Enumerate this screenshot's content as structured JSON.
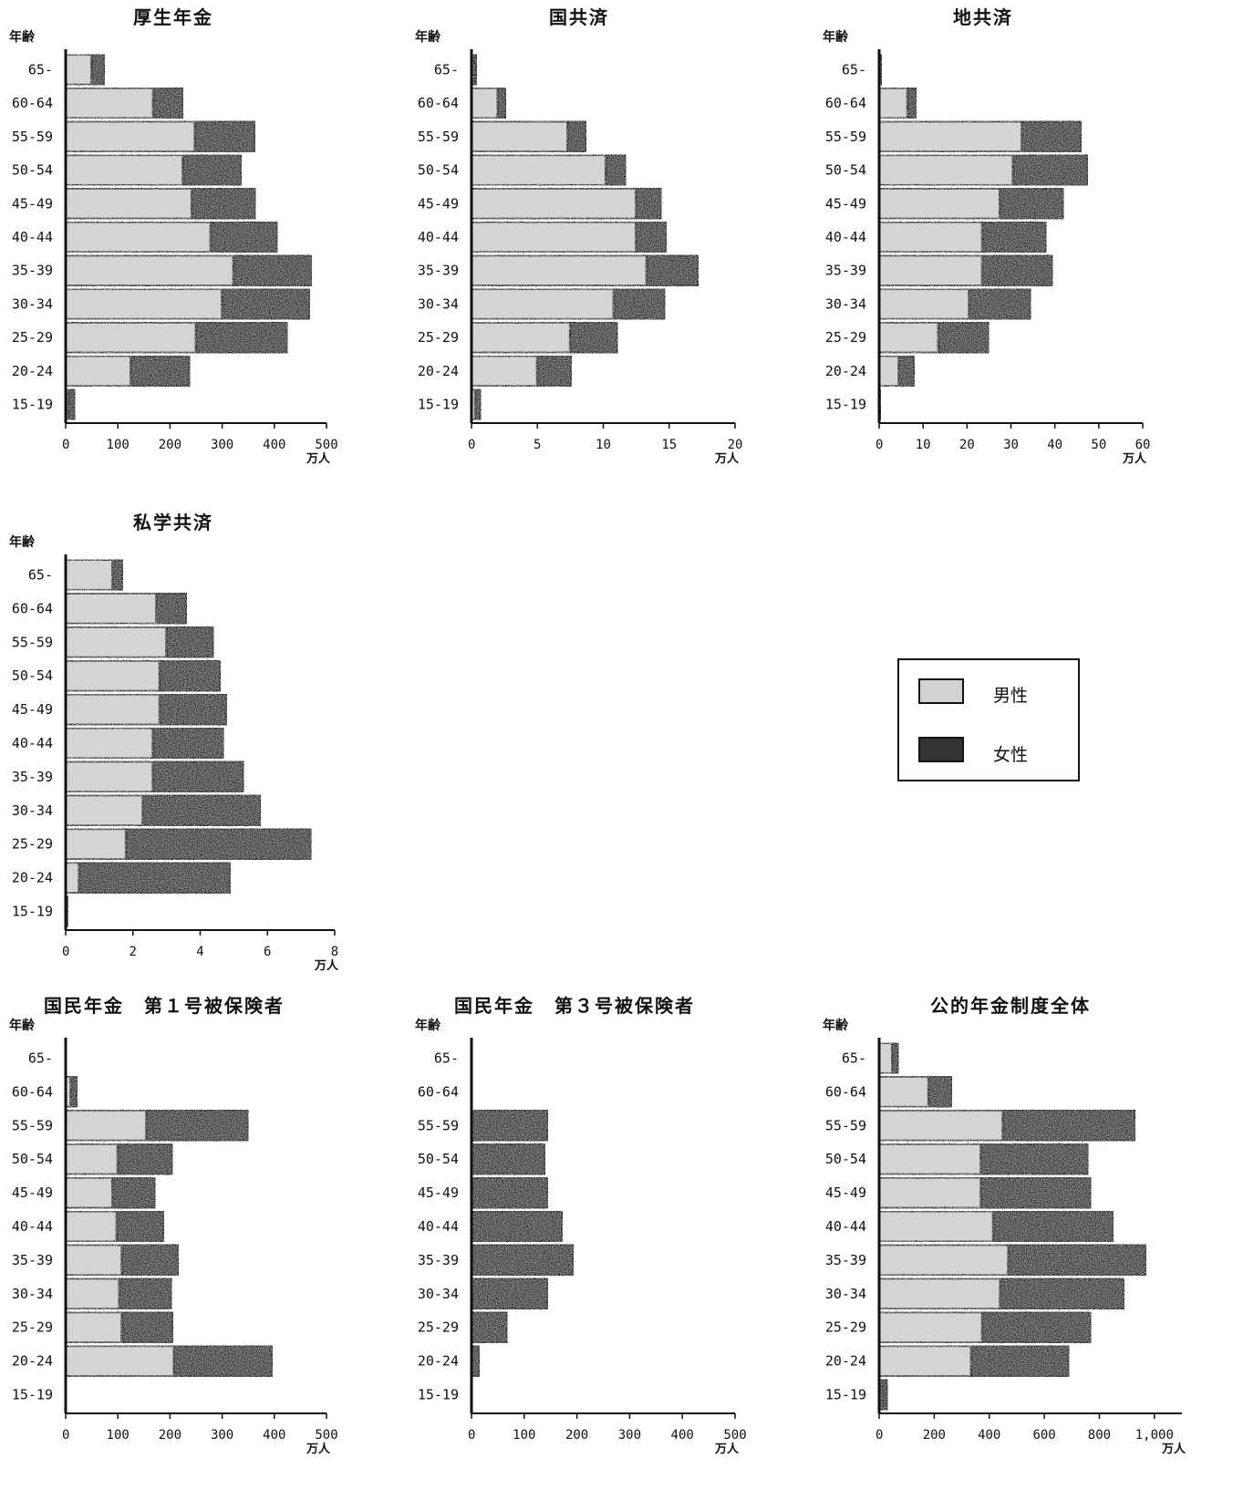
{
  "chart_data": [
    {
      "type": "bar",
      "orientation": "horizontal-stacked",
      "title": "厚生年金",
      "age_header": "年齢",
      "unit": "万人",
      "categories": [
        "65-",
        "60-64",
        "55-59",
        "50-54",
        "45-49",
        "40-44",
        "35-39",
        "30-34",
        "25-29",
        "20-24",
        "15-19"
      ],
      "xlim": [
        0,
        500
      ],
      "ticks": [
        0,
        100,
        200,
        300,
        400,
        500
      ],
      "tick_labels": [
        "0",
        "100",
        "200",
        "300",
        "400",
        "500"
      ],
      "series": [
        {
          "name": "男性",
          "values": [
            50,
            168,
            248,
            225,
            242,
            278,
            322,
            300,
            250,
            125,
            5
          ]
        },
        {
          "name": "女性",
          "values": [
            25,
            57,
            115,
            112,
            122,
            128,
            150,
            168,
            175,
            113,
            13
          ]
        }
      ]
    },
    {
      "type": "bar",
      "orientation": "horizontal-stacked",
      "title": "国共済",
      "age_header": "年齢",
      "unit": "万人",
      "categories": [
        "65-",
        "60-64",
        "55-59",
        "50-54",
        "45-49",
        "40-44",
        "35-39",
        "30-34",
        "25-29",
        "20-24",
        "15-19"
      ],
      "xlim": [
        0,
        20
      ],
      "ticks": [
        0,
        5,
        10,
        15,
        20
      ],
      "tick_labels": [
        "0",
        "5",
        "10",
        "15",
        "20"
      ],
      "series": [
        {
          "name": "男性",
          "values": [
            0.2,
            2.0,
            7.3,
            10.2,
            12.5,
            12.5,
            13.3,
            10.8,
            7.5,
            5.0,
            0.3
          ]
        },
        {
          "name": "女性",
          "values": [
            0.2,
            0.6,
            1.4,
            1.5,
            1.9,
            2.3,
            3.9,
            3.9,
            3.6,
            2.6,
            0.4
          ]
        }
      ]
    },
    {
      "type": "bar",
      "orientation": "horizontal-stacked",
      "title": "地共済",
      "age_header": "年齢",
      "unit": "万人",
      "categories": [
        "65-",
        "60-64",
        "55-59",
        "50-54",
        "45-49",
        "40-44",
        "35-39",
        "30-34",
        "25-29",
        "20-24",
        "15-19"
      ],
      "xlim": [
        0,
        60
      ],
      "ticks": [
        0,
        10,
        20,
        30,
        40,
        50,
        60
      ],
      "tick_labels": [
        "0",
        "10",
        "20",
        "30",
        "40",
        "50",
        "60"
      ],
      "series": [
        {
          "name": "男性",
          "values": [
            0.3,
            6.5,
            32.5,
            30.5,
            27.5,
            23.5,
            23.5,
            20.5,
            13.5,
            4.5,
            0.1
          ]
        },
        {
          "name": "女性",
          "values": [
            0.1,
            2.0,
            13.5,
            17.0,
            14.5,
            14.5,
            16.0,
            14.0,
            11.5,
            3.5,
            0.2
          ]
        }
      ]
    },
    {
      "type": "bar",
      "orientation": "horizontal-stacked",
      "title": "私学共済",
      "age_header": "年齢",
      "unit": "万人",
      "categories": [
        "65-",
        "60-64",
        "55-59",
        "50-54",
        "45-49",
        "40-44",
        "35-39",
        "30-34",
        "25-29",
        "20-24",
        "15-19"
      ],
      "xlim": [
        0,
        8
      ],
      "ticks": [
        0,
        2,
        4,
        6,
        8
      ],
      "tick_labels": [
        "0",
        "2",
        "4",
        "6",
        "8"
      ],
      "series": [
        {
          "name": "男性",
          "values": [
            1.4,
            2.7,
            3.0,
            2.8,
            2.8,
            2.6,
            2.6,
            2.3,
            1.8,
            0.4,
            0.02
          ]
        },
        {
          "name": "女性",
          "values": [
            0.3,
            0.9,
            1.4,
            1.8,
            2.0,
            2.1,
            2.7,
            3.5,
            5.5,
            4.5,
            0.05
          ]
        }
      ]
    },
    {
      "type": "bar",
      "orientation": "horizontal-stacked",
      "title": "国民年金　第１号被保険者",
      "age_header": "年齢",
      "unit": "万人",
      "categories": [
        "65-",
        "60-64",
        "55-59",
        "50-54",
        "45-49",
        "40-44",
        "35-39",
        "30-34",
        "25-29",
        "20-24",
        "15-19"
      ],
      "xlim": [
        0,
        500
      ],
      "ticks": [
        0,
        100,
        200,
        300,
        400,
        500
      ],
      "tick_labels": [
        "0",
        "100",
        "200",
        "300",
        "400",
        "500"
      ],
      "series": [
        {
          "name": "男性",
          "values": [
            0,
            10,
            155,
            100,
            90,
            98,
            108,
            103,
            108,
            208,
            0
          ]
        },
        {
          "name": "女性",
          "values": [
            0,
            12,
            195,
            105,
            82,
            90,
            108,
            100,
            98,
            188,
            0
          ]
        }
      ]
    },
    {
      "type": "bar",
      "orientation": "horizontal-stacked",
      "title": "国民年金　第３号被保険者",
      "age_header": "年齢",
      "unit": "万人",
      "categories": [
        "65-",
        "60-64",
        "55-59",
        "50-54",
        "45-49",
        "40-44",
        "35-39",
        "30-34",
        "25-29",
        "20-24",
        "15-19"
      ],
      "xlim": [
        0,
        500
      ],
      "ticks": [
        0,
        100,
        200,
        300,
        400,
        500
      ],
      "tick_labels": [
        "0",
        "100",
        "200",
        "300",
        "400",
        "500"
      ],
      "series": [
        {
          "name": "男性",
          "values": [
            0,
            0,
            0,
            0,
            0,
            0,
            0,
            0,
            0,
            0,
            0
          ]
        },
        {
          "name": "女性",
          "values": [
            0,
            0,
            145,
            140,
            145,
            173,
            193,
            145,
            68,
            15,
            0
          ]
        }
      ]
    },
    {
      "type": "bar",
      "orientation": "horizontal-stacked",
      "title": "公的年金制度全体",
      "age_header": "年齢",
      "unit": "万人",
      "categories": [
        "65-",
        "60-64",
        "55-59",
        "50-54",
        "45-49",
        "40-44",
        "35-39",
        "30-34",
        "25-29",
        "20-24",
        "15-19"
      ],
      "xlim": [
        0,
        1100
      ],
      "ticks": [
        0,
        200,
        400,
        600,
        800,
        1000
      ],
      "tick_labels": [
        "0",
        "200",
        "400",
        "600",
        "800",
        "1,000"
      ],
      "series": [
        {
          "name": "男性",
          "values": [
            48,
            180,
            450,
            370,
            370,
            415,
            470,
            440,
            375,
            335,
            10
          ]
        },
        {
          "name": "女性",
          "values": [
            22,
            85,
            480,
            390,
            400,
            435,
            500,
            450,
            395,
            355,
            20
          ]
        }
      ]
    }
  ],
  "legend": {
    "items": [
      {
        "label": "男性",
        "color": "#d2d2d2"
      },
      {
        "label": "女性",
        "color": "#333333"
      }
    ]
  }
}
